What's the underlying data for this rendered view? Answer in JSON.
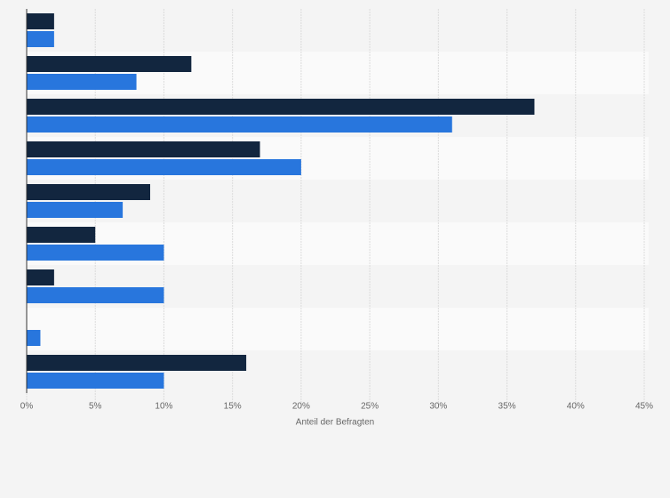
{
  "chart_data": {
    "type": "bar",
    "orientation": "horizontal",
    "categories": [
      null,
      null,
      null,
      null,
      null,
      null,
      null,
      null,
      null
    ],
    "series": [
      {
        "color": "#12263f",
        "values": [
          2,
          12,
          37,
          17,
          9,
          5,
          2,
          0,
          16
        ]
      },
      {
        "color": "#2876dd",
        "values": [
          2,
          8,
          31,
          20,
          7,
          10,
          10,
          1,
          10
        ]
      }
    ],
    "xlim": [
      0,
      45
    ],
    "xticks": [
      {
        "value": 0,
        "label": "0%"
      },
      {
        "value": 5,
        "label": "5%"
      },
      {
        "value": 10,
        "label": "10%"
      },
      {
        "value": 15,
        "label": "15%"
      },
      {
        "value": 20,
        "label": "20%"
      },
      {
        "value": 25,
        "label": "25%"
      },
      {
        "value": 30,
        "label": "30%"
      },
      {
        "value": 35,
        "label": "35%"
      },
      {
        "value": 40,
        "label": "40%"
      },
      {
        "value": 45,
        "label": "45%"
      }
    ],
    "xlabel": "Anteil der Befragten",
    "grid": true
  }
}
